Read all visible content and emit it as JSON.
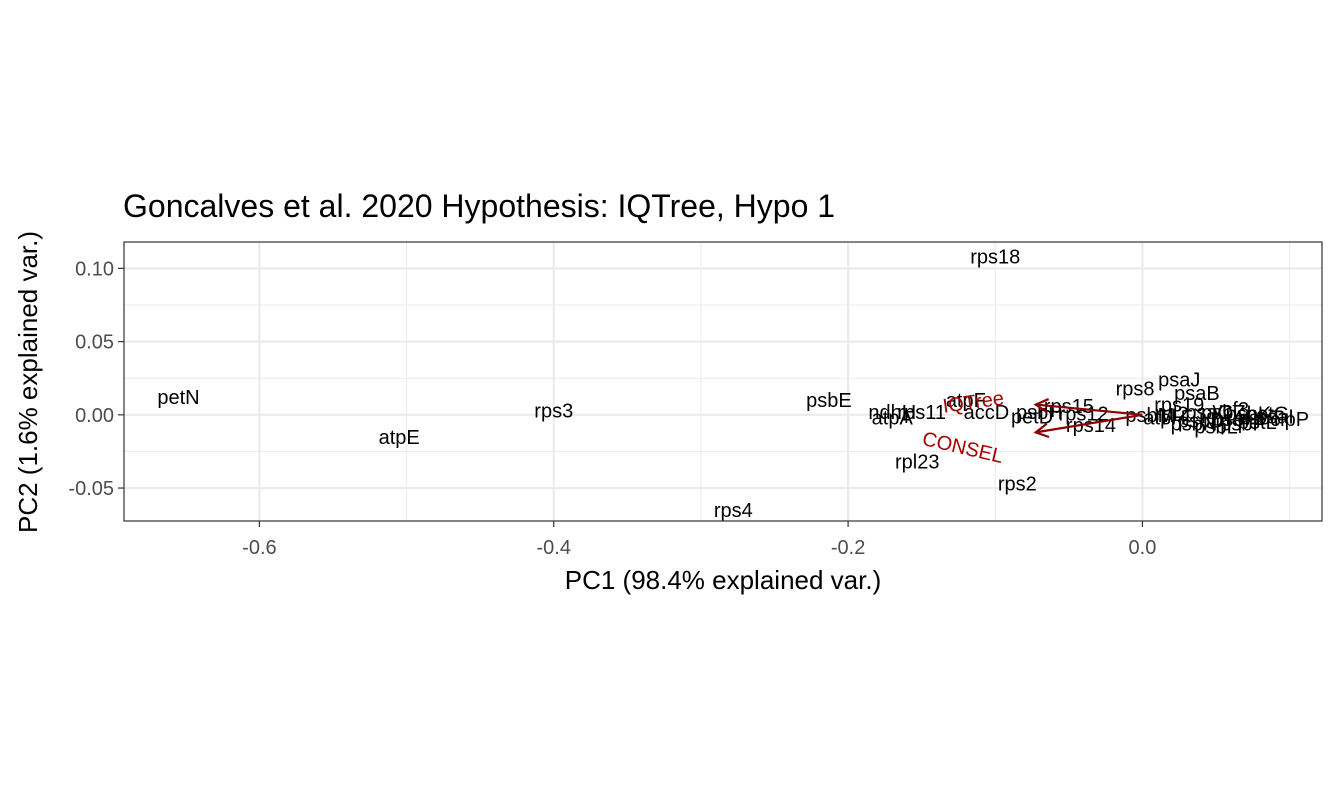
{
  "chart_data": {
    "type": "scatter",
    "title": "Goncalves et al. 2020 Hypothesis: IQTree,  Hypo 1",
    "xlabel": "PC1 (98.4% explained var.)",
    "ylabel": "PC2 (1.6% explained var.)",
    "xlim": [
      -0.692,
      0.122
    ],
    "ylim": [
      -0.0725,
      0.118
    ],
    "xticks": [
      -0.6,
      -0.4,
      -0.2,
      0.0
    ],
    "xtick_labels": [
      "-0.6",
      "-0.4",
      "-0.2",
      "0.0"
    ],
    "yticks": [
      -0.05,
      0.0,
      0.05,
      0.1
    ],
    "ytick_labels": [
      "-0.05",
      "0.00",
      "0.05",
      "0.10"
    ],
    "grid": true,
    "points": [
      {
        "label": "rps18",
        "x": -0.1,
        "y": 0.108
      },
      {
        "label": "petN",
        "x": -0.655,
        "y": 0.012
      },
      {
        "label": "rps3",
        "x": -0.4,
        "y": 0.003
      },
      {
        "label": "atpE",
        "x": -0.505,
        "y": -0.015
      },
      {
        "label": "psbE",
        "x": -0.213,
        "y": 0.01
      },
      {
        "label": "ndhH",
        "x": -0.17,
        "y": 0.002
      },
      {
        "label": "rps11",
        "x": -0.15,
        "y": 0.002
      },
      {
        "label": "atpA",
        "x": -0.17,
        "y": -0.002
      },
      {
        "label": "atpF",
        "x": -0.12,
        "y": 0.01
      },
      {
        "label": "accD",
        "x": -0.106,
        "y": 0.002
      },
      {
        "label": "rpl23",
        "x": -0.153,
        "y": -0.032
      },
      {
        "label": "rps2",
        "x": -0.085,
        "y": -0.047
      },
      {
        "label": "rps4",
        "x": -0.278,
        "y": -0.065
      },
      {
        "label": "rps15",
        "x": -0.05,
        "y": 0.006
      },
      {
        "label": "rps12",
        "x": -0.04,
        "y": 0.001
      },
      {
        "label": "psbH",
        "x": -0.07,
        "y": 0.002
      },
      {
        "label": "petD",
        "x": -0.075,
        "y": -0.001
      },
      {
        "label": "rps14",
        "x": -0.035,
        "y": -0.007
      },
      {
        "label": "rps8",
        "x": -0.005,
        "y": 0.018
      },
      {
        "label": "psaJ",
        "x": 0.025,
        "y": 0.024
      },
      {
        "label": "psaB",
        "x": 0.037,
        "y": 0.015
      },
      {
        "label": "rps19",
        "x": 0.025,
        "y": 0.007
      },
      {
        "label": "rpl2",
        "x": 0.02,
        "y": 0.001
      },
      {
        "label": "psbM",
        "x": 0.005,
        "y": 0.0
      },
      {
        "label": "atpH",
        "x": 0.015,
        "y": -0.002
      },
      {
        "label": "psbN",
        "x": 0.035,
        "y": -0.006
      },
      {
        "label": "psbL",
        "x": 0.05,
        "y": -0.008
      },
      {
        "label": "psbZ",
        "x": 0.055,
        "y": 0.002
      },
      {
        "label": "psbI",
        "x": 0.06,
        "y": -0.003
      },
      {
        "label": "psbK",
        "x": 0.072,
        "y": 0.001
      },
      {
        "label": "psbT",
        "x": 0.08,
        "y": -0.002
      },
      {
        "label": "petG",
        "x": 0.085,
        "y": 0.001
      },
      {
        "label": "psbF",
        "x": 0.068,
        "y": -0.006
      },
      {
        "label": "psaC",
        "x": 0.045,
        "y": 0.002
      },
      {
        "label": "psbD",
        "x": 0.04,
        "y": -0.004
      },
      {
        "label": "petL",
        "x": 0.078,
        "y": -0.005
      },
      {
        "label": "psaI",
        "x": 0.09,
        "y": -0.001
      },
      {
        "label": "ycf3",
        "x": 0.06,
        "y": 0.004
      },
      {
        "label": "clpP",
        "x": 0.1,
        "y": -0.003
      }
    ],
    "vectors": [
      {
        "label": "IQTree",
        "x": -0.0725,
        "y": 0.007,
        "label_x": -0.115,
        "label_y": 0.009,
        "label_angle": 8,
        "color": "#8b0000"
      },
      {
        "label": "CONSEL",
        "x": -0.0725,
        "y": -0.012,
        "label_x": -0.122,
        "label_y": -0.022,
        "label_angle": -13,
        "color": "#8b0000"
      }
    ],
    "vector_origin": [
      0,
      0
    ],
    "colors": {
      "vector": "#8b0000",
      "vector_label": "#a50000",
      "grid": "#ebebeb",
      "panel_border": "#333333",
      "tick_label": "#4d4d4d"
    }
  }
}
